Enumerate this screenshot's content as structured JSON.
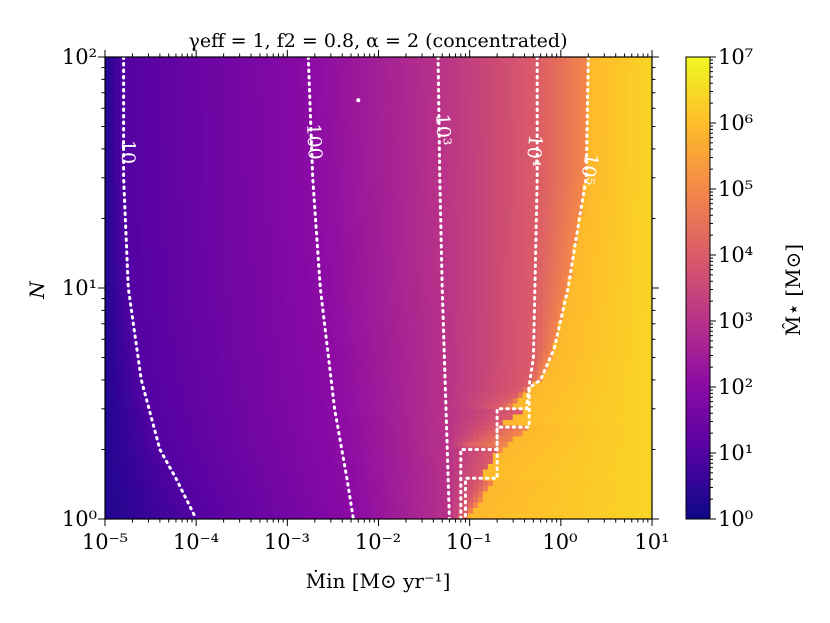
{
  "chart_data": {
    "type": "heatmap",
    "title": "γeff = 1, f2 = 0.8, α = 2 (concentrated)",
    "xlabel": "Ṁin [M⊙ yr⁻¹]",
    "ylabel": "N",
    "x_scale": "log",
    "y_scale": "log",
    "xlim": [
      1e-05,
      10
    ],
    "ylim": [
      1,
      100
    ],
    "x_ticks": [
      {
        "value": 1e-05,
        "label": "10⁻⁵"
      },
      {
        "value": 0.0001,
        "label": "10⁻⁴"
      },
      {
        "value": 0.001,
        "label": "10⁻³"
      },
      {
        "value": 0.01,
        "label": "10⁻²"
      },
      {
        "value": 0.1,
        "label": "10⁻¹"
      },
      {
        "value": 1,
        "label": "10⁰"
      },
      {
        "value": 10,
        "label": "10¹"
      }
    ],
    "y_ticks": [
      {
        "value": 1,
        "label": "10⁰"
      },
      {
        "value": 10,
        "label": "10¹"
      },
      {
        "value": 100,
        "label": "10²"
      }
    ],
    "colorbar": {
      "label": "M̂⋆ [M⊙]",
      "scale": "log",
      "colormap": "plasma",
      "range": [
        1,
        10000000
      ],
      "ticks": [
        {
          "value": 1,
          "label": "10⁰"
        },
        {
          "value": 10,
          "label": "10¹"
        },
        {
          "value": 100,
          "label": "10²"
        },
        {
          "value": 1000,
          "label": "10³"
        },
        {
          "value": 10000,
          "label": "10⁴"
        },
        {
          "value": 100000,
          "label": "10⁵"
        },
        {
          "value": 1000000,
          "label": "10⁶"
        },
        {
          "value": 10000000,
          "label": "10⁷"
        }
      ],
      "colors": [
        "#0d0887",
        "#5302a3",
        "#8b0aa5",
        "#b83289",
        "#db5c68",
        "#f48849",
        "#febd2a",
        "#f0f921"
      ]
    },
    "contours": [
      {
        "level": 10,
        "label": "10",
        "points": [
          [
            1.6e-05,
            100
          ],
          [
            1.6e-05,
            30
          ],
          [
            1.8e-05,
            10
          ],
          [
            2.5e-05,
            4
          ],
          [
            4e-05,
            2
          ],
          [
            6e-05,
            1.5
          ],
          [
            0.0001,
            1
          ]
        ]
      },
      {
        "level": 100,
        "label": "100",
        "points": [
          [
            0.0017,
            100
          ],
          [
            0.0019,
            30
          ],
          [
            0.0023,
            10
          ],
          [
            0.0033,
            3
          ],
          [
            0.0045,
            1.5
          ],
          [
            0.0053,
            1
          ]
        ]
      },
      {
        "level": 1000,
        "label": "10³",
        "points": [
          [
            0.045,
            100
          ],
          [
            0.047,
            30
          ],
          [
            0.05,
            10
          ],
          [
            0.055,
            3
          ],
          [
            0.06,
            1
          ]
        ]
      },
      {
        "level": 10000,
        "label": "10⁴",
        "points": [
          [
            0.55,
            100
          ],
          [
            0.55,
            30
          ],
          [
            0.52,
            10
          ],
          [
            0.5,
            5
          ],
          [
            0.45,
            3.8
          ],
          [
            0.42,
            3
          ],
          [
            0.2,
            3
          ],
          [
            0.2,
            2
          ],
          [
            0.08,
            2
          ],
          [
            0.08,
            1
          ]
        ]
      },
      {
        "level": 100000,
        "label": "10⁵",
        "points": [
          [
            2.0,
            100
          ],
          [
            1.9,
            30
          ],
          [
            1.6,
            20
          ],
          [
            1.2,
            10
          ],
          [
            0.85,
            5.5
          ],
          [
            0.6,
            4
          ],
          [
            0.45,
            3.7
          ],
          [
            0.45,
            2.5
          ],
          [
            0.2,
            2.5
          ],
          [
            0.2,
            1.5
          ],
          [
            0.09,
            1.5
          ],
          [
            0.09,
            1
          ]
        ]
      }
    ],
    "annotation_marker": {
      "x": 0.006,
      "y": 65
    }
  }
}
